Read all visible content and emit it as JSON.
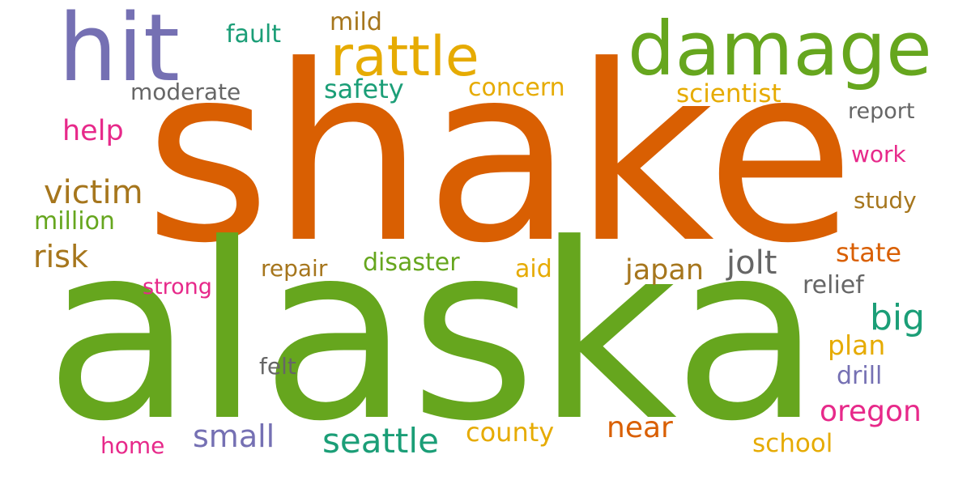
{
  "words": [
    {
      "text": "shake",
      "color": "#d95f02"
    },
    {
      "text": "alaska",
      "color": "#66a61e"
    },
    {
      "text": "hit",
      "color": "#7570b3"
    },
    {
      "text": "damage",
      "color": "#66a61e"
    },
    {
      "text": "rattle",
      "color": "#e6ab02"
    },
    {
      "text": "fault",
      "color": "#1b9e77"
    },
    {
      "text": "mild",
      "color": "#a6761d"
    },
    {
      "text": "moderate",
      "color": "#666666"
    },
    {
      "text": "safety",
      "color": "#1b9e77"
    },
    {
      "text": "concern",
      "color": "#e6ab02"
    },
    {
      "text": "scientist",
      "color": "#e6ab02"
    },
    {
      "text": "report",
      "color": "#666666"
    },
    {
      "text": "help",
      "color": "#e7298a"
    },
    {
      "text": "work",
      "color": "#e7298a"
    },
    {
      "text": "victim",
      "color": "#a6761d"
    },
    {
      "text": "study",
      "color": "#a6761d"
    },
    {
      "text": "million",
      "color": "#66a61e"
    },
    {
      "text": "risk",
      "color": "#a6761d"
    },
    {
      "text": "state",
      "color": "#d95f02"
    },
    {
      "text": "disaster",
      "color": "#66a61e"
    },
    {
      "text": "repair",
      "color": "#a6761d"
    },
    {
      "text": "jolt",
      "color": "#666666"
    },
    {
      "text": "aid",
      "color": "#e6ab02"
    },
    {
      "text": "japan",
      "color": "#a6761d"
    },
    {
      "text": "strong",
      "color": "#e7298a"
    },
    {
      "text": "relief",
      "color": "#666666"
    },
    {
      "text": "big",
      "color": "#1b9e77"
    },
    {
      "text": "plan",
      "color": "#e6ab02"
    },
    {
      "text": "felt",
      "color": "#666666"
    },
    {
      "text": "drill",
      "color": "#7570b3"
    },
    {
      "text": "near",
      "color": "#d95f02"
    },
    {
      "text": "oregon",
      "color": "#e7298a"
    },
    {
      "text": "county",
      "color": "#e6ab02"
    },
    {
      "text": "seattle",
      "color": "#1b9e77"
    },
    {
      "text": "small",
      "color": "#7570b3"
    },
    {
      "text": "home",
      "color": "#e7298a"
    },
    {
      "text": "school",
      "color": "#e6ab02"
    }
  ]
}
